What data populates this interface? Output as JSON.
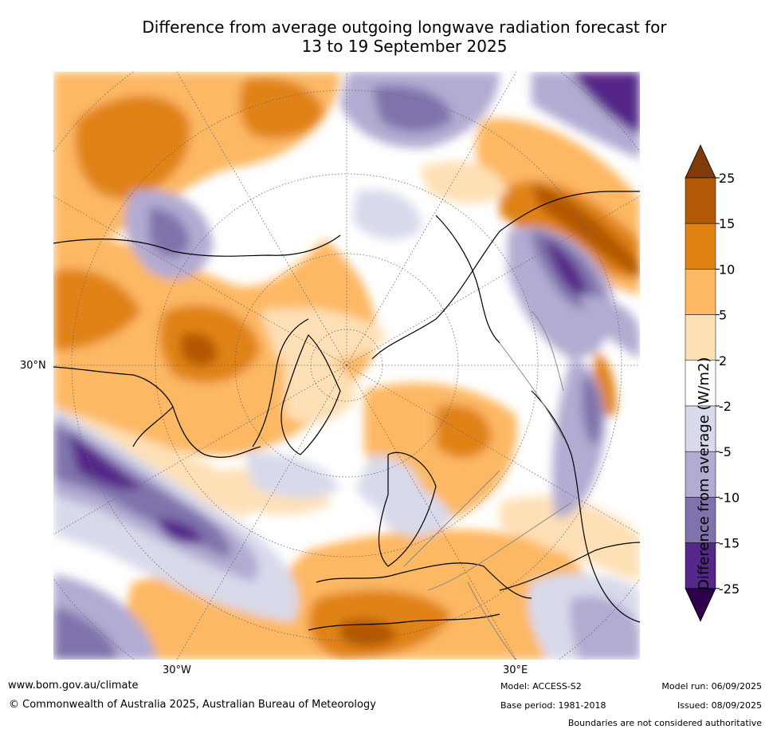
{
  "title": {
    "line1": "Difference from average outgoing longwave radiation forecast for",
    "line2": "13 to 19 September 2025"
  },
  "map": {
    "projection": "north polar stereographic",
    "lat_label": "30°N",
    "lon_labels": {
      "west": "30°W",
      "east": "30°E"
    }
  },
  "colorbar": {
    "label": "Difference from average (W/m2)",
    "ticks": [
      "25",
      "15",
      "10",
      "5",
      "2",
      "-2",
      "-5",
      "-10",
      "-15",
      "-25"
    ],
    "bins": [
      {
        "range": "> 25",
        "color": "#7f3b08"
      },
      {
        "range": "15 to 25",
        "color": "#b35806"
      },
      {
        "range": "10 to 15",
        "color": "#e08214"
      },
      {
        "range": "5 to 10",
        "color": "#fdb863"
      },
      {
        "range": "2 to 5",
        "color": "#fee0b6"
      },
      {
        "range": "-2 to 2",
        "color": "#ffffff"
      },
      {
        "range": "-5 to -2",
        "color": "#d8daeb"
      },
      {
        "range": "-10 to -5",
        "color": "#b2abd2"
      },
      {
        "range": "-15 to -10",
        "color": "#8073ac"
      },
      {
        "range": "-25 to -15",
        "color": "#542788"
      },
      {
        "range": "< -25",
        "color": "#2d004b"
      }
    ]
  },
  "footer": {
    "website": "www.bom.gov.au/climate",
    "copyright": "© Commonwealth of Australia 2025, Australian Bureau of Meteorology",
    "model": "Model: ACCESS-S2",
    "base_period": "Base period: 1981-2018",
    "model_run": "Model run: 06/09/2025",
    "issued": "Issued: 08/09/2025",
    "disclaimer": "Boundaries are not considered authoritative"
  }
}
